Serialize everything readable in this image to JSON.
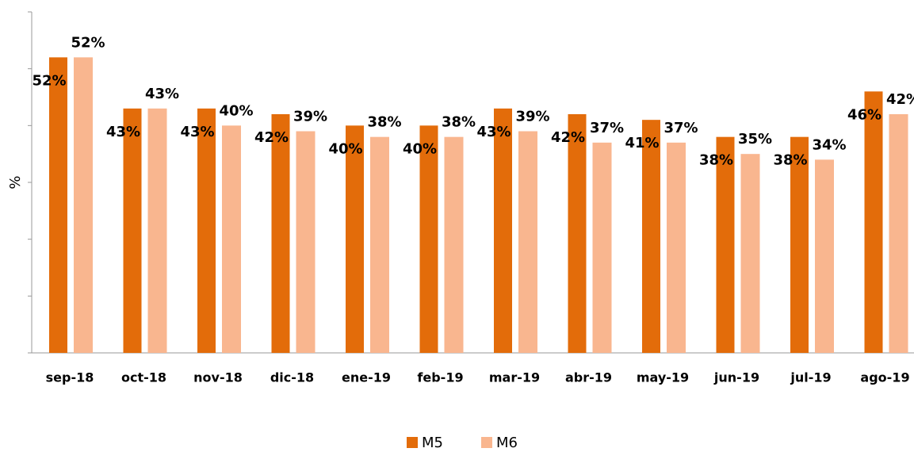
{
  "chart_data": {
    "type": "bar",
    "y_label": "%",
    "categories": [
      "sep-18",
      "oct-18",
      "nov-18",
      "dic-18",
      "ene-19",
      "feb-19",
      "mar-19",
      "abr-19",
      "may-19",
      "jun-19",
      "jul-19",
      "ago-19"
    ],
    "series": [
      {
        "name": "M5",
        "color": "#e36c0a",
        "values": [
          52,
          43,
          43,
          42,
          40,
          40,
          43,
          42,
          41,
          38,
          38,
          46
        ],
        "value_labels": [
          "52%",
          "43%",
          "43%",
          "42%",
          "40%",
          "40%",
          "43%",
          "42%",
          "41%",
          "38%",
          "38%",
          "46%"
        ]
      },
      {
        "name": "M6",
        "color": "#f9b68f",
        "values": [
          52,
          43,
          40,
          39,
          38,
          38,
          39,
          37,
          37,
          35,
          34,
          42
        ],
        "value_labels": [
          "52%",
          "43%",
          "40%",
          "39%",
          "38%",
          "38%",
          "39%",
          "37%",
          "37%",
          "35%",
          "34%",
          "42%"
        ]
      }
    ],
    "ylim": [
      0,
      60
    ],
    "yticks": [
      0,
      10,
      20,
      30,
      40,
      50,
      60
    ],
    "grid": false,
    "legend": "bottom"
  }
}
